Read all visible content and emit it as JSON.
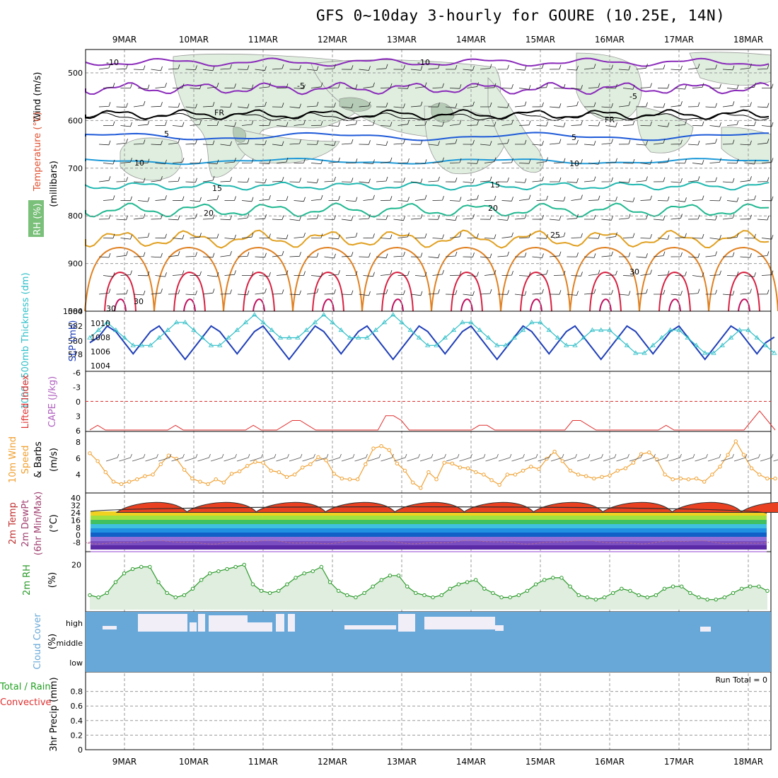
{
  "title": "GFS 0~10day 3-hourly for GOURE (10.25E, 14N)",
  "dates": [
    "9MAR",
    "10MAR",
    "11MAR",
    "12MAR",
    "13MAR",
    "14MAR",
    "15MAR",
    "16MAR",
    "17MAR",
    "18MAR"
  ],
  "colors": {
    "grid": "#999999",
    "rh_shade": "#dfeede",
    "cloud": "#68a8d8",
    "temp_line": "#f0a030",
    "dew_line": "#b06a8a",
    "rh_line": "#2a9a2a",
    "slp": "#1f3fb8",
    "thick": "#2fbfc8",
    "li": "#e03030"
  },
  "panels": {
    "upper": {
      "ylabel_wind": "Wind (m/s)",
      "ylabel_temp": "Temperature (°C)",
      "ylabel_rh": "RH (%)",
      "ylabel_unit": "(millibars)",
      "yticks": [
        "500",
        "600",
        "700",
        "800",
        "900",
        "1000"
      ],
      "isotherm_labels": [
        "-10",
        "-10",
        "-5",
        "-5",
        "FR",
        "FR",
        "5",
        "5",
        "10",
        "10",
        "15",
        "15",
        "20",
        "20",
        "25",
        "30",
        "30",
        "30"
      ]
    },
    "thick": {
      "ylabel": "1000~500mb Thickness (dm)",
      "ylabel2": "SLP (mb)",
      "yticks_left": [
        "584",
        "582",
        "580",
        "578"
      ],
      "yticks_right": [
        "1010",
        "1008",
        "1006",
        "1004"
      ]
    },
    "li": {
      "ylabel": "Lifted Index",
      "ylabel2": "CAPE (J/kg)",
      "yticks": [
        "-6",
        "-3",
        "0",
        "3",
        "6"
      ]
    },
    "wind10": {
      "ylabel": "10m Wind",
      "ylabel2": "Speed",
      "ylabel3": "& Barbs",
      "unit": "(m/s)",
      "yticks": [
        "8",
        "6",
        "4"
      ]
    },
    "temp2m": {
      "ylabel": "2m Temp",
      "ylabel2": "2m DewPt",
      "ylabel3": "(6hr Min/Max)",
      "unit": "(°C)",
      "yticks": [
        "40",
        "32",
        "24",
        "16",
        "8",
        "0",
        "-8"
      ]
    },
    "rh2m": {
      "ylabel": "2m RH",
      "unit": "(%)",
      "yticks": [
        "20"
      ]
    },
    "cloud": {
      "ylabel": "Cloud Cover",
      "unit": "(%)",
      "levels": [
        "high",
        "middle",
        "low"
      ]
    },
    "precip": {
      "ylabel": "Total / Rain",
      "ylabel2": "Convective",
      "ylabel3": "3hr Precip (mm)",
      "yticks": [
        "0.8",
        "0.6",
        "0.4",
        "0.2",
        "0"
      ],
      "run_total": "Run Total = 0"
    }
  },
  "chart_data": [
    {
      "type": "line",
      "title": "Lifted Index",
      "x_start": "8MAR 12Z",
      "x_step_hours": 3,
      "series": [
        {
          "name": "Lifted Index",
          "values": [
            6,
            5,
            6,
            6,
            6,
            6,
            6,
            6,
            6,
            6,
            6,
            5,
            6,
            6,
            6,
            6,
            6,
            6,
            6,
            6,
            6,
            5,
            6,
            6,
            6,
            5,
            4,
            4,
            5,
            6,
            6,
            6,
            6,
            6,
            6,
            6,
            6,
            6,
            3,
            3,
            4,
            6,
            6,
            6,
            6,
            6,
            6,
            6,
            6,
            6,
            5,
            5,
            6,
            6,
            6,
            6,
            6,
            6,
            6,
            6,
            6,
            6,
            4,
            4,
            5,
            6,
            6,
            6,
            6,
            6,
            6,
            6,
            6,
            6,
            5,
            6,
            6,
            6,
            6,
            6,
            6,
            6,
            6,
            6,
            6,
            4,
            2,
            4,
            6
          ]
        }
      ],
      "ylim": [
        -6,
        6
      ]
    },
    {
      "type": "line",
      "title": "10m Wind Speed",
      "x_start": "8MAR 12Z",
      "x_step_hours": 3,
      "ylim": [
        3,
        9
      ],
      "series": [
        {
          "name": "10m Wind Speed",
          "values": [
            7.2,
            6.2,
            4.8,
            3.6,
            3.3,
            3.6,
            3.9,
            4.3,
            4.5,
            5.8,
            6.9,
            6.5,
            5.1,
            4.0,
            3.6,
            3.3,
            3.9,
            3.5,
            4.6,
            4.9,
            5.6,
            6.1,
            6.0,
            5.0,
            4.8,
            4.2,
            4.5,
            5.4,
            5.8,
            6.7,
            6.3,
            4.6,
            4.0,
            3.9,
            3.9,
            5.8,
            7.8,
            8.1,
            7.6,
            5.9,
            5.0,
            3.5,
            2.8,
            4.8,
            3.9,
            6.0,
            5.9,
            5.4,
            5.3,
            4.8,
            4.5,
            3.8,
            3.2,
            4.5,
            4.5,
            5.0,
            5.5,
            5.2,
            6.5,
            7.4,
            6.2,
            5.0,
            4.5,
            4.3,
            4.0,
            4.2,
            4.4,
            5.0,
            5.3,
            6.0,
            7.1,
            7.3,
            6.4,
            4.5,
            3.9,
            4.0,
            3.9,
            4.0,
            3.6,
            4.5,
            5.5,
            7.0,
            8.7,
            7.0,
            5.3,
            4.5,
            4.0,
            4.0
          ]
        }
      ]
    },
    {
      "type": "line",
      "title": "2m RH",
      "x_start": "8MAR 12Z",
      "x_step_hours": 3,
      "ylim": [
        0,
        25
      ],
      "yticks": [
        20
      ],
      "series": [
        {
          "name": "2m RH",
          "values": [
            6,
            5,
            7,
            12,
            16,
            18,
            19,
            19,
            12,
            7,
            5,
            6,
            9,
            13,
            16,
            17,
            18,
            19,
            20,
            11,
            8,
            7,
            8,
            11,
            14,
            16,
            17,
            19,
            12,
            8,
            6,
            5,
            7,
            10,
            13,
            15,
            15,
            10,
            7,
            6,
            5,
            6,
            9,
            11,
            12,
            13,
            9,
            7,
            5,
            5,
            6,
            8,
            11,
            13,
            14,
            14,
            10,
            6,
            5,
            4,
            5,
            7,
            9,
            8,
            6,
            5,
            6,
            9,
            10,
            10,
            7,
            5,
            4,
            4,
            5,
            7,
            9,
            10,
            10,
            8
          ]
        }
      ]
    },
    {
      "type": "line",
      "title": "Thickness / SLP",
      "x_start": "8MAR 12Z",
      "x_step_hours": 3,
      "series": [
        {
          "name": "1000~500mb Thickness (dm)",
          "values": [
            581,
            582,
            583,
            582,
            581,
            580,
            580,
            580,
            581,
            582,
            583,
            583,
            582,
            581,
            580,
            580,
            581,
            582,
            583,
            584,
            583,
            582,
            581,
            581,
            581,
            582,
            583,
            584,
            583,
            582,
            581,
            581,
            581,
            582,
            583,
            584,
            583,
            582,
            581,
            580,
            580,
            581,
            582,
            583,
            583,
            582,
            581,
            580,
            580,
            581,
            582,
            583,
            583,
            582,
            581,
            580,
            580,
            581,
            582,
            582,
            582,
            581,
            580,
            579,
            579,
            580,
            581,
            582,
            582,
            581,
            580,
            579,
            579,
            580,
            581,
            582,
            582,
            581,
            580,
            579
          ]
        },
        {
          "name": "SLP (mb)",
          "values": [
            1007,
            1008,
            1010,
            1009,
            1007,
            1005,
            1007,
            1009,
            1010,
            1008,
            1006,
            1004,
            1006,
            1008,
            1010,
            1009,
            1007,
            1005,
            1007,
            1009,
            1010,
            1008,
            1006,
            1004,
            1006,
            1008,
            1010,
            1009,
            1007,
            1005,
            1007,
            1009,
            1010,
            1008,
            1006,
            1004,
            1006,
            1008,
            1010,
            1009,
            1007,
            1005,
            1007,
            1009,
            1010,
            1008,
            1006,
            1004,
            1006,
            1008,
            1010,
            1009,
            1007,
            1005,
            1007,
            1009,
            1010,
            1008,
            1006,
            1004,
            1006,
            1008,
            1010,
            1009,
            1007,
            1005,
            1007,
            1009,
            1010,
            1008,
            1006,
            1004,
            1006,
            1008,
            1010,
            1009,
            1007,
            1005,
            1007,
            1008
          ]
        }
      ]
    }
  ]
}
